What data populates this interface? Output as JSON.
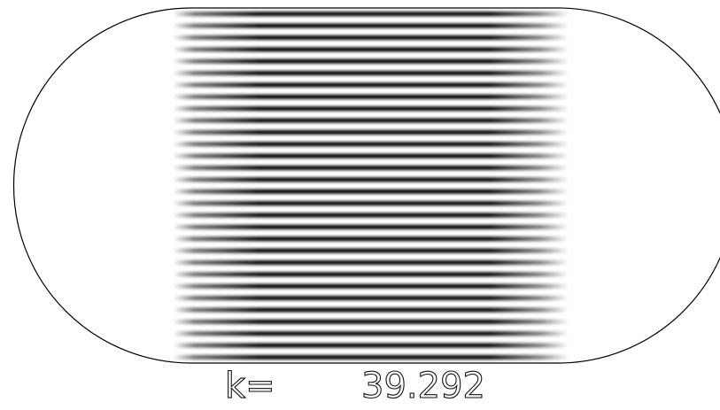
{
  "caption": {
    "label": "k=",
    "value": "39.292"
  }
}
